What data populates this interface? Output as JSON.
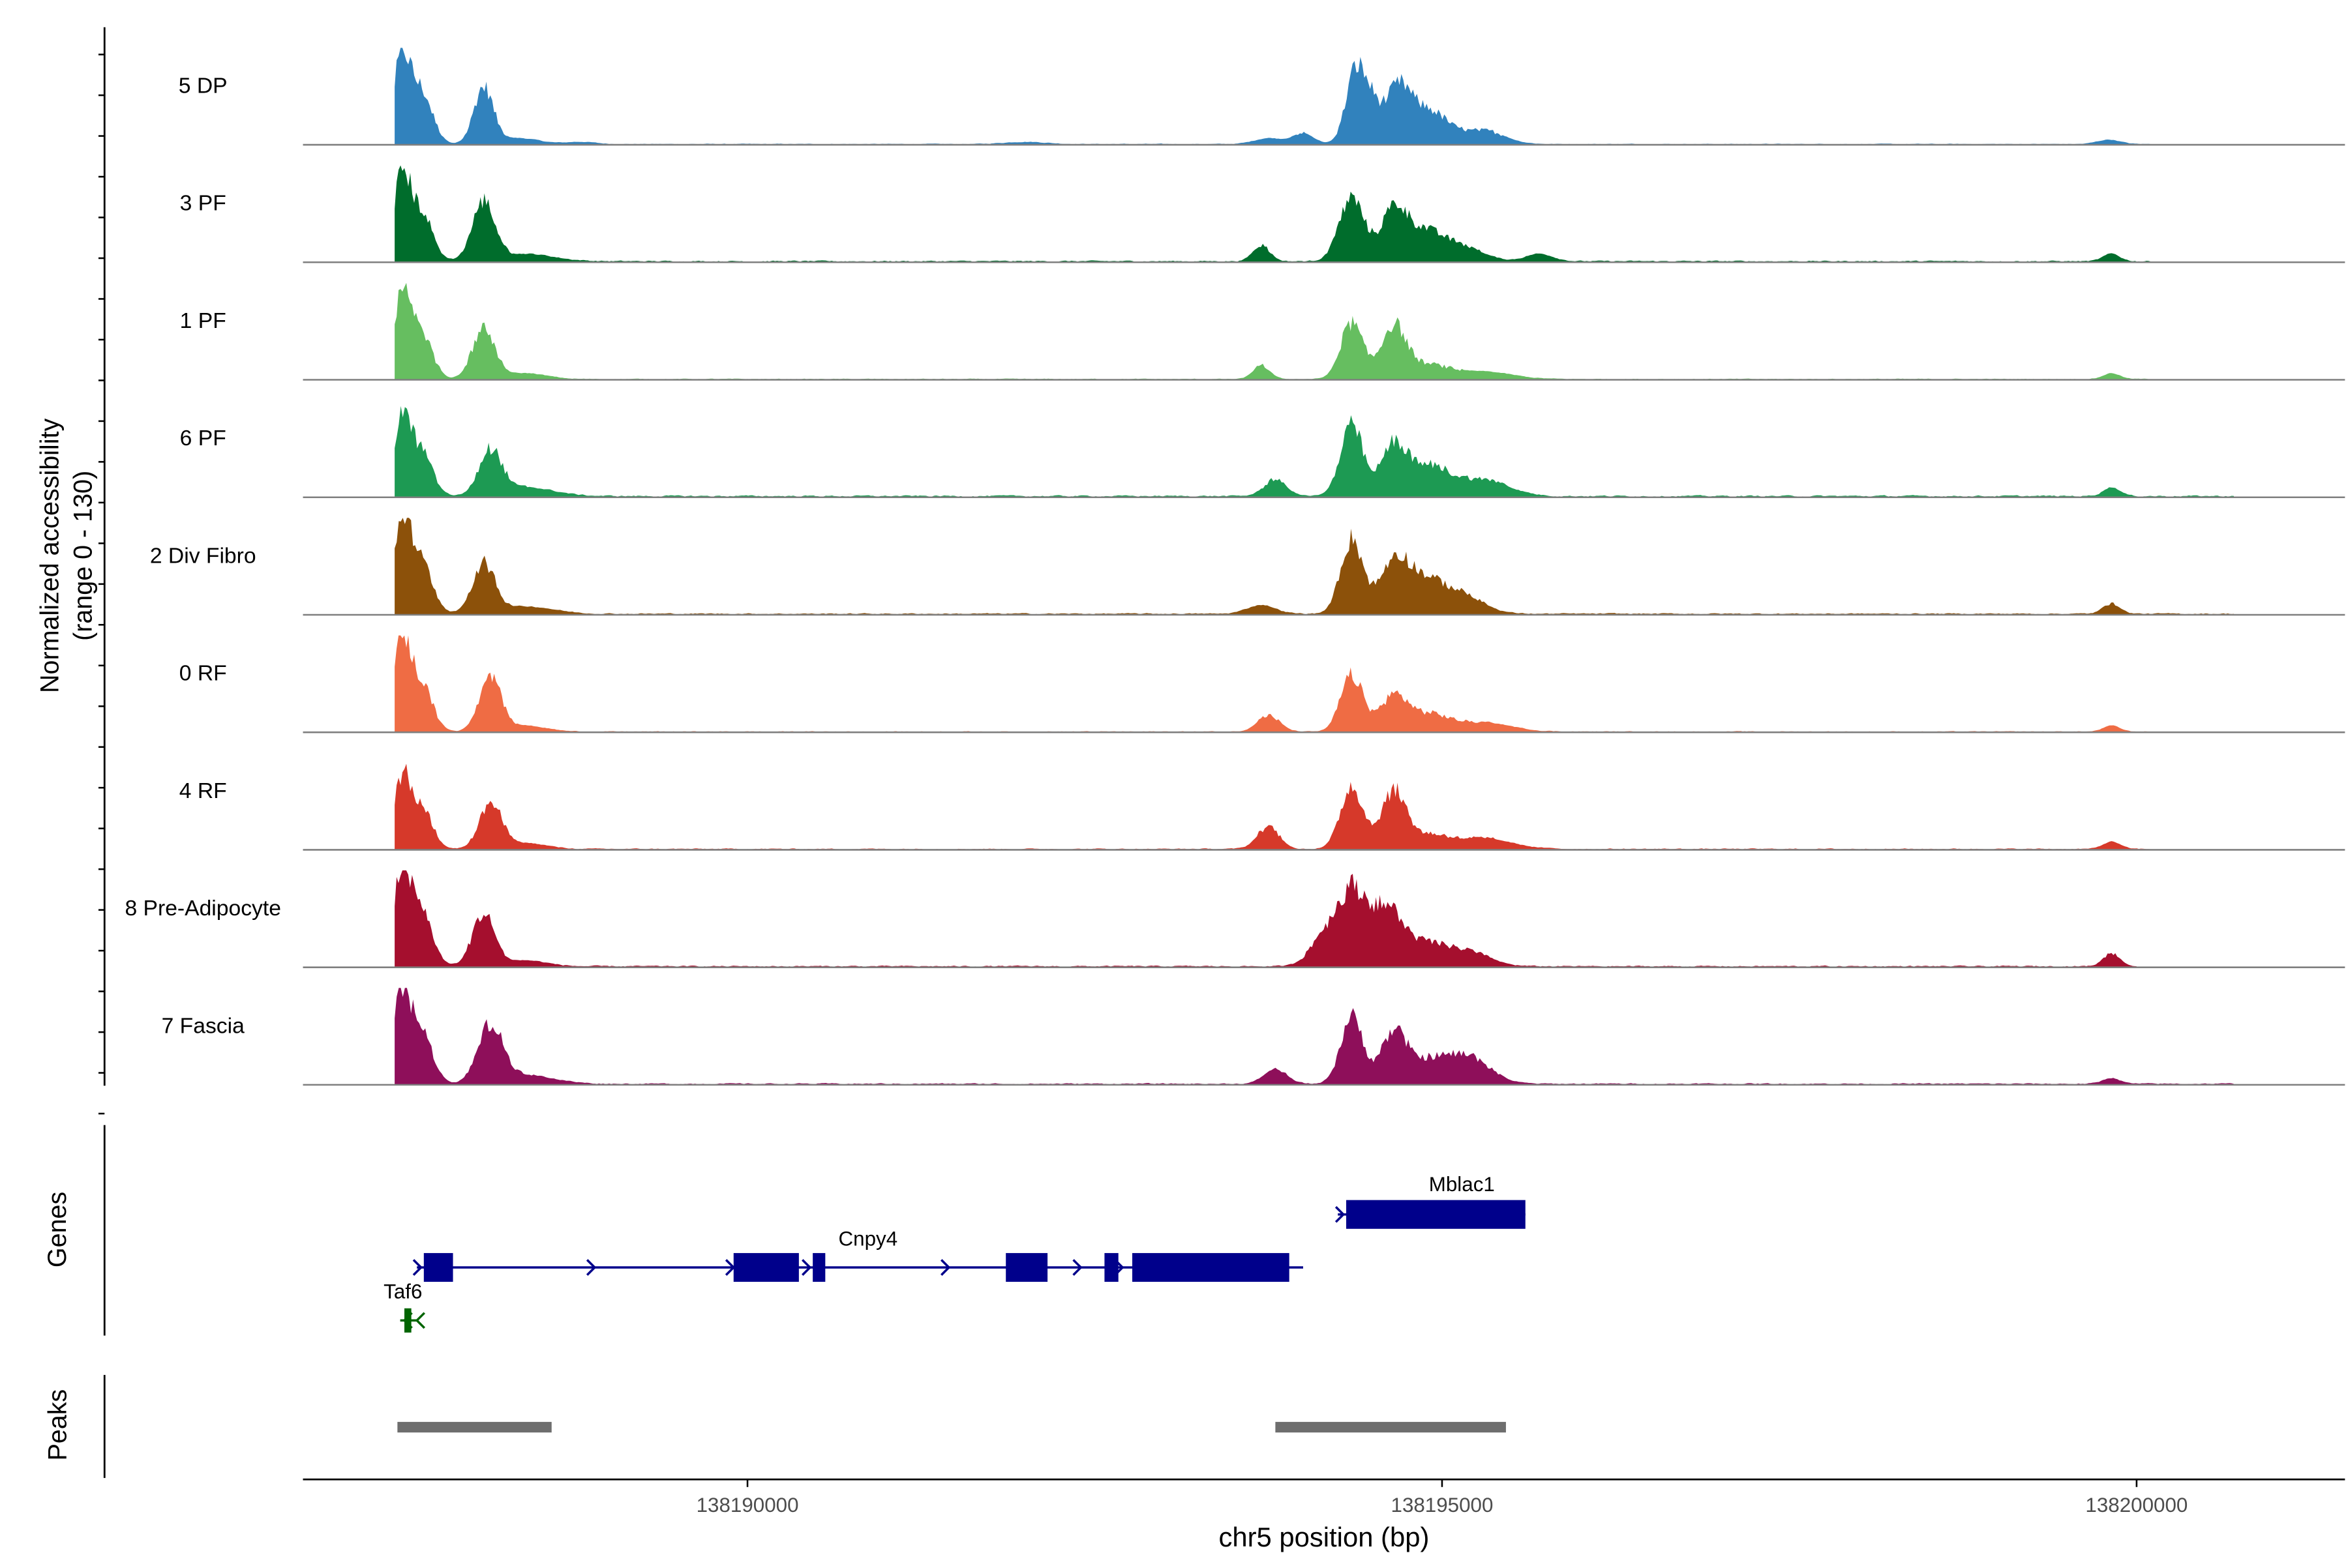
{
  "chart_data": {
    "type": "area",
    "title": "",
    "ylabel_line1": "Normalized accessibility",
    "ylabel_line2": "(range 0 - 130)",
    "ylim": [
      0,
      130
    ],
    "xlabel": "chr5 position (bp)",
    "xlim": [
      138186800,
      138201500
    ],
    "xticks": [
      {
        "value": 138190000,
        "label": "138190000"
      },
      {
        "value": 138195000,
        "label": "138195000"
      },
      {
        "value": 138200000,
        "label": "138200000"
      }
    ],
    "tracks": [
      {
        "name": "5 DP",
        "color": "#3182BD",
        "noise": 2.0,
        "peaks": [
          [
            138187510,
            110,
            60
          ],
          [
            138187650,
            70,
            80
          ],
          [
            138188100,
            75,
            70
          ],
          [
            138188350,
            8,
            150
          ],
          [
            138188800,
            3,
            100
          ],
          [
            138192000,
            3,
            150
          ],
          [
            138193750,
            8,
            100
          ],
          [
            138194000,
            14,
            80
          ],
          [
            138194380,
            100,
            70
          ],
          [
            138194500,
            40,
            60
          ],
          [
            138194680,
            68,
            90
          ],
          [
            138194900,
            45,
            140
          ],
          [
            138195300,
            18,
            150
          ],
          [
            138199800,
            6,
            80
          ]
        ],
        "extent": [
          138187460,
          138200100
        ]
      },
      {
        "name": "3 PF",
        "color": "#006D2C",
        "noise": 3.0,
        "peaks": [
          [
            138187510,
            110,
            60
          ],
          [
            138187650,
            65,
            80
          ],
          [
            138188100,
            78,
            80
          ],
          [
            138188400,
            10,
            200
          ],
          [
            138193700,
            22,
            60
          ],
          [
            138194350,
            85,
            90
          ],
          [
            138194650,
            60,
            90
          ],
          [
            138194850,
            40,
            150
          ],
          [
            138195150,
            18,
            150
          ],
          [
            138195700,
            10,
            100
          ],
          [
            138199820,
            10,
            60
          ]
        ],
        "extent": [
          138187460,
          138200100
        ]
      },
      {
        "name": "1 PF",
        "color": "#66BE60",
        "noise": 2.0,
        "peaks": [
          [
            138187510,
            105,
            60
          ],
          [
            138187650,
            60,
            80
          ],
          [
            138188100,
            68,
            80
          ],
          [
            138188400,
            8,
            150
          ],
          [
            138193700,
            18,
            60
          ],
          [
            138194350,
            75,
            80
          ],
          [
            138194650,
            70,
            90
          ],
          [
            138194900,
            18,
            150
          ],
          [
            138195300,
            10,
            200
          ],
          [
            138199820,
            8,
            60
          ]
        ],
        "extent": [
          138187460,
          138200100
        ]
      },
      {
        "name": "6 PF",
        "color": "#1D9A53",
        "noise": 3.5,
        "peaks": [
          [
            138187510,
            100,
            60
          ],
          [
            138187650,
            60,
            80
          ],
          [
            138188150,
            60,
            80
          ],
          [
            138188400,
            12,
            200
          ],
          [
            138193800,
            22,
            80
          ],
          [
            138194350,
            95,
            80
          ],
          [
            138194650,
            65,
            90
          ],
          [
            138194900,
            40,
            150
          ],
          [
            138195300,
            22,
            180
          ],
          [
            138199820,
            12,
            60
          ]
        ],
        "extent": [
          138187460,
          138200700
        ]
      },
      {
        "name": "2 Div Fibro",
        "color": "#8C510A",
        "noise": 3.0,
        "peaks": [
          [
            138187510,
            120,
            60
          ],
          [
            138187650,
            70,
            80
          ],
          [
            138188100,
            65,
            80
          ],
          [
            138188400,
            10,
            200
          ],
          [
            138193700,
            12,
            100
          ],
          [
            138194350,
            100,
            80
          ],
          [
            138194650,
            60,
            100
          ],
          [
            138194850,
            45,
            150
          ],
          [
            138195150,
            24,
            150
          ],
          [
            138199820,
            14,
            60
          ]
        ],
        "extent": [
          138187460,
          138200700
        ]
      },
      {
        "name": "0 RF",
        "color": "#EF6C44",
        "noise": 2.0,
        "peaks": [
          [
            138187510,
            120,
            60
          ],
          [
            138187650,
            65,
            80
          ],
          [
            138188150,
            70,
            80
          ],
          [
            138188400,
            8,
            150
          ],
          [
            138193750,
            22,
            80
          ],
          [
            138194350,
            75,
            80
          ],
          [
            138194650,
            45,
            100
          ],
          [
            138194900,
            22,
            150
          ],
          [
            138195300,
            12,
            200
          ],
          [
            138199820,
            8,
            60
          ]
        ],
        "extent": [
          138187460,
          138200100
        ]
      },
      {
        "name": "4 RF",
        "color": "#D6392A",
        "noise": 2.5,
        "peaks": [
          [
            138187510,
            90,
            60
          ],
          [
            138187650,
            55,
            80
          ],
          [
            138188150,
            60,
            80
          ],
          [
            138188400,
            8,
            150
          ],
          [
            138193750,
            30,
            80
          ],
          [
            138194350,
            85,
            80
          ],
          [
            138194650,
            75,
            90
          ],
          [
            138194900,
            18,
            150
          ],
          [
            138195300,
            14,
            200
          ],
          [
            138199820,
            10,
            60
          ]
        ],
        "extent": [
          138187460,
          138200100
        ]
      },
      {
        "name": "8 Pre-Adipocyte",
        "color": "#A50F2E",
        "noise": 3.0,
        "peaks": [
          [
            138187510,
            120,
            60
          ],
          [
            138187650,
            75,
            80
          ],
          [
            138188100,
            70,
            80
          ],
          [
            138188400,
            8,
            150
          ],
          [
            138194150,
            40,
            100
          ],
          [
            138194350,
            95,
            100
          ],
          [
            138194600,
            75,
            120
          ],
          [
            138194900,
            28,
            150
          ],
          [
            138195200,
            18,
            150
          ],
          [
            138199820,
            18,
            60
          ]
        ],
        "extent": [
          138187460,
          138200000
        ]
      },
      {
        "name": "7 Fascia",
        "color": "#8E0F5A",
        "noise": 3.0,
        "peaks": [
          [
            138187510,
            120,
            60
          ],
          [
            138187650,
            70,
            80
          ],
          [
            138188150,
            75,
            90
          ],
          [
            138188400,
            12,
            200
          ],
          [
            138193800,
            20,
            80
          ],
          [
            138194350,
            90,
            80
          ],
          [
            138194650,
            65,
            90
          ],
          [
            138194900,
            30,
            150
          ],
          [
            138195200,
            35,
            150
          ],
          [
            138199820,
            8,
            60
          ]
        ],
        "extent": [
          138187460,
          138200700
        ]
      }
    ],
    "genes_label": "Genes",
    "genes": [
      {
        "name": "Taf6",
        "color": "#006400",
        "strand": "-",
        "line": [
          138187500,
          138187620
        ],
        "exons": [
          [
            138187530,
            138187580
          ]
        ]
      },
      {
        "name": "Cnpy4",
        "color": "#00008B",
        "strand": "+",
        "line": [
          138187620,
          138194000
        ],
        "exons": [
          [
            138187670,
            138187880
          ],
          [
            138189900,
            138190370
          ],
          [
            138190470,
            138190560
          ],
          [
            138191860,
            138192160
          ],
          [
            138192570,
            138192670
          ],
          [
            138192770,
            138193900
          ]
        ]
      },
      {
        "name": "Mblac1",
        "color": "#00008B",
        "strand": "+",
        "line": [
          138194250,
          138195600
        ],
        "exons": [
          [
            138194310,
            138195600
          ]
        ]
      }
    ],
    "peaks_label": "Peaks",
    "peaks": [
      {
        "start": 138187480,
        "end": 138188590
      },
      {
        "start": 138193800,
        "end": 138195460
      }
    ],
    "colors": {
      "axis": "#000000",
      "baseline": "#7F7F7F",
      "peak_bar": "#6E6E6E",
      "text": "#000000"
    }
  }
}
